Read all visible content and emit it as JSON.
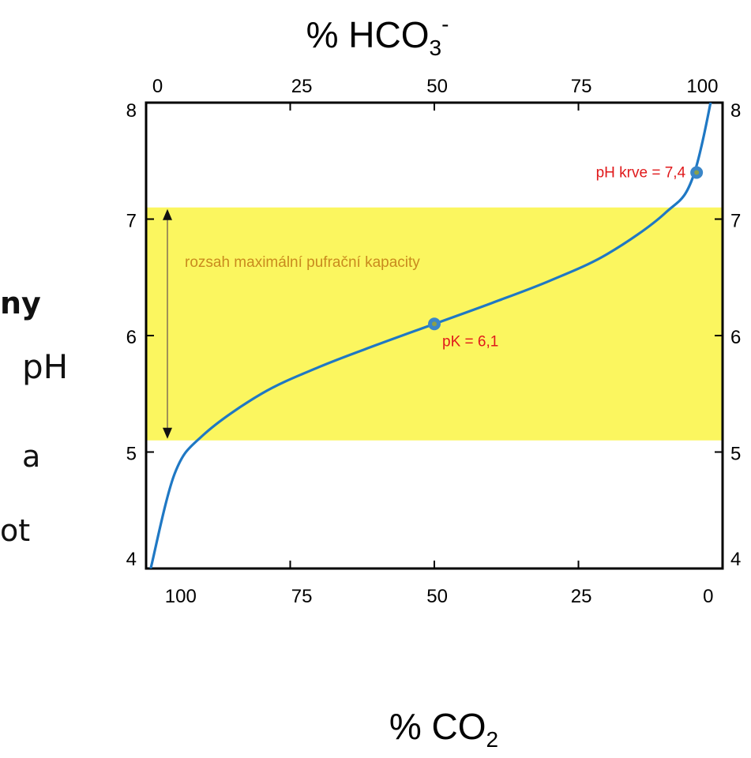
{
  "side_text": [
    "ny",
    "pH",
    "a",
    "ot"
  ],
  "chart_data": {
    "type": "line",
    "title": "",
    "x_top_label": "% HCO",
    "x_top_label_sub": "3",
    "x_top_label_sup": "-",
    "x_bottom_label": "% CO",
    "x_bottom_label_sub": "2",
    "x_top_ticks": [
      "0",
      "25",
      "50",
      "75",
      "100"
    ],
    "x_bottom_ticks": [
      "100",
      "75",
      "50",
      "25",
      "0"
    ],
    "y_ticks": [
      "4",
      "5",
      "6",
      "7",
      "8"
    ],
    "xlim": [
      0,
      100
    ],
    "ylim": [
      4,
      8
    ],
    "band": {
      "from": 5.1,
      "to": 7.1,
      "color": "#fbf65f",
      "label": "rozsah maximální pufrační kapacity",
      "label_color": "#c98a1e"
    },
    "series": [
      {
        "x": [
          0.8,
          5,
          10,
          20,
          30,
          40,
          50,
          60,
          70,
          80,
          90,
          95,
          99.5
        ],
        "y": [
          4.0,
          4.82,
          5.15,
          5.5,
          5.73,
          5.92,
          6.1,
          6.28,
          6.47,
          6.7,
          7.05,
          7.38,
          8.4
        ],
        "color": "#1f78c4"
      }
    ],
    "points": [
      {
        "x": 50,
        "y": 6.1,
        "label": "pK = 6,1",
        "label_color": "#e0191b"
      },
      {
        "x": 95.5,
        "y": 7.4,
        "label": "pH krve = 7,4",
        "label_color": "#e0191b"
      }
    ],
    "colors": {
      "curve": "#1f78c4",
      "marker": "#3a86c8",
      "band": "#fbf65f",
      "annotation": "#e0191b",
      "band_label": "#c98a1e"
    }
  }
}
